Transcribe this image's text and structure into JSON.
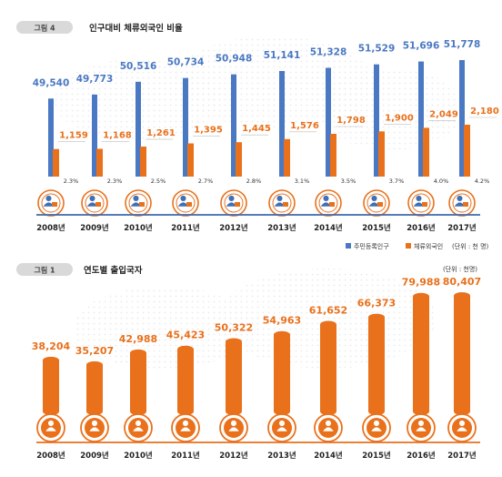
{
  "colors": {
    "blue": "#4a78c2",
    "orange": "#e9711c",
    "dark": "#222222",
    "badge_bg": "#d9d9d9",
    "icon_blue": "#3f6fb5",
    "baseline_blue": "#3c69ad",
    "baseline_orange": "#e9711c"
  },
  "icons": {
    "person": "person-icon"
  },
  "chart_data": [
    {
      "type": "bar",
      "badge": "그림 4",
      "title": "인구대비 체류외국인 비율",
      "categories": [
        "2008년",
        "2009년",
        "2010년",
        "2011년",
        "2012년",
        "2013년",
        "2014년",
        "2015년",
        "2016년",
        "2017년"
      ],
      "series": [
        {
          "name": "주민등록인구",
          "values": [
            49540,
            49773,
            50516,
            50734,
            50948,
            51141,
            51328,
            51529,
            51696,
            51778
          ],
          "labels": [
            "49,540",
            "49,773",
            "50,516",
            "50,734",
            "50,948",
            "51,141",
            "51,328",
            "51,529",
            "51,696",
            "51,778"
          ]
        },
        {
          "name": "체류외국인",
          "values": [
            1159,
            1168,
            1261,
            1395,
            1445,
            1576,
            1798,
            1900,
            2049,
            2180
          ],
          "labels": [
            "1,159",
            "1,168",
            "1,261",
            "1,395",
            "1,445",
            "1,576",
            "1,798",
            "1,900",
            "2,049",
            "2,180"
          ]
        }
      ],
      "ratio_labels": [
        "2.3%",
        "2.3%",
        "2.5%",
        "2.7%",
        "2.8%",
        "3.1%",
        "3.5%",
        "3.7%",
        "4.0%",
        "4.2%"
      ],
      "unit_note": "(단위 : 천 명)",
      "legend_position": "bottom-right"
    },
    {
      "type": "bar",
      "badge": "그림 1",
      "title": "연도별 출입국자",
      "unit_note": "(단위 : 천명)",
      "categories": [
        "2008년",
        "2009년",
        "2010년",
        "2011년",
        "2012년",
        "2013년",
        "2014년",
        "2015년",
        "2016년",
        "2017년"
      ],
      "values": [
        38204,
        35207,
        42988,
        45423,
        50322,
        54963,
        61652,
        66373,
        79988,
        80407
      ],
      "labels": [
        "38,204",
        "35,207",
        "42,988",
        "45,423",
        "50,322",
        "54,963",
        "61,652",
        "66,373",
        "79,988",
        "80,407"
      ]
    }
  ]
}
